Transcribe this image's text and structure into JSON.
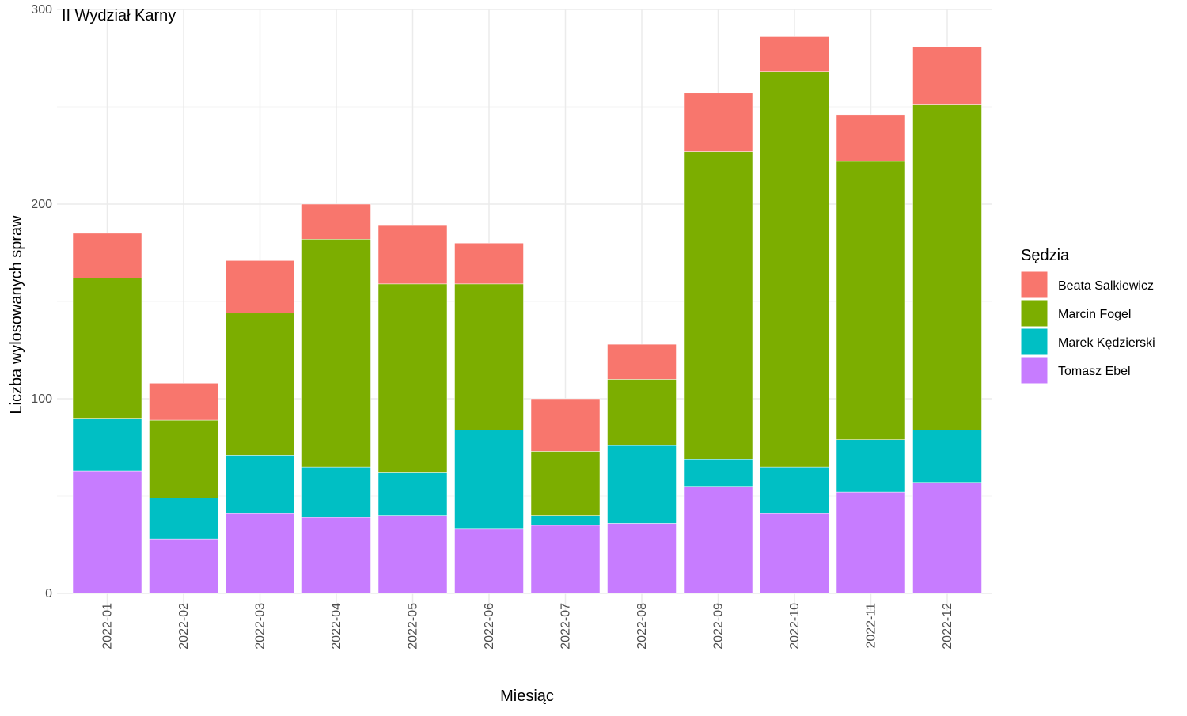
{
  "chart_data": {
    "type": "bar",
    "stacked": true,
    "title": "II Wydział Karny",
    "xlabel": "Miesiąc",
    "ylabel": "Liczba wylosowanych spraw",
    "ylim": [
      0,
      300
    ],
    "yticks": [
      0,
      100,
      200,
      300
    ],
    "grid": true,
    "legend": {
      "title": "Sędzia",
      "position": "right"
    },
    "categories": [
      "2022-01",
      "2022-02",
      "2022-03",
      "2022-04",
      "2022-05",
      "2022-06",
      "2022-07",
      "2022-08",
      "2022-09",
      "2022-10",
      "2022-11",
      "2022-12"
    ],
    "series": [
      {
        "name": "Beata Salkiewicz",
        "color": "#F8766D",
        "values": [
          23,
          19,
          27,
          18,
          30,
          21,
          27,
          18,
          30,
          18,
          24,
          30
        ]
      },
      {
        "name": "Marcin Fogel",
        "color": "#7CAE00",
        "values": [
          72,
          40,
          73,
          117,
          97,
          75,
          33,
          34,
          158,
          203,
          143,
          167
        ]
      },
      {
        "name": "Marek Kędzierski",
        "color": "#00BFC4",
        "values": [
          27,
          21,
          30,
          26,
          22,
          51,
          5,
          40,
          14,
          24,
          27,
          27
        ]
      },
      {
        "name": "Tomasz Ebel",
        "color": "#C77CFF",
        "values": [
          63,
          28,
          41,
          39,
          40,
          33,
          35,
          36,
          55,
          41,
          52,
          57
        ]
      }
    ]
  }
}
